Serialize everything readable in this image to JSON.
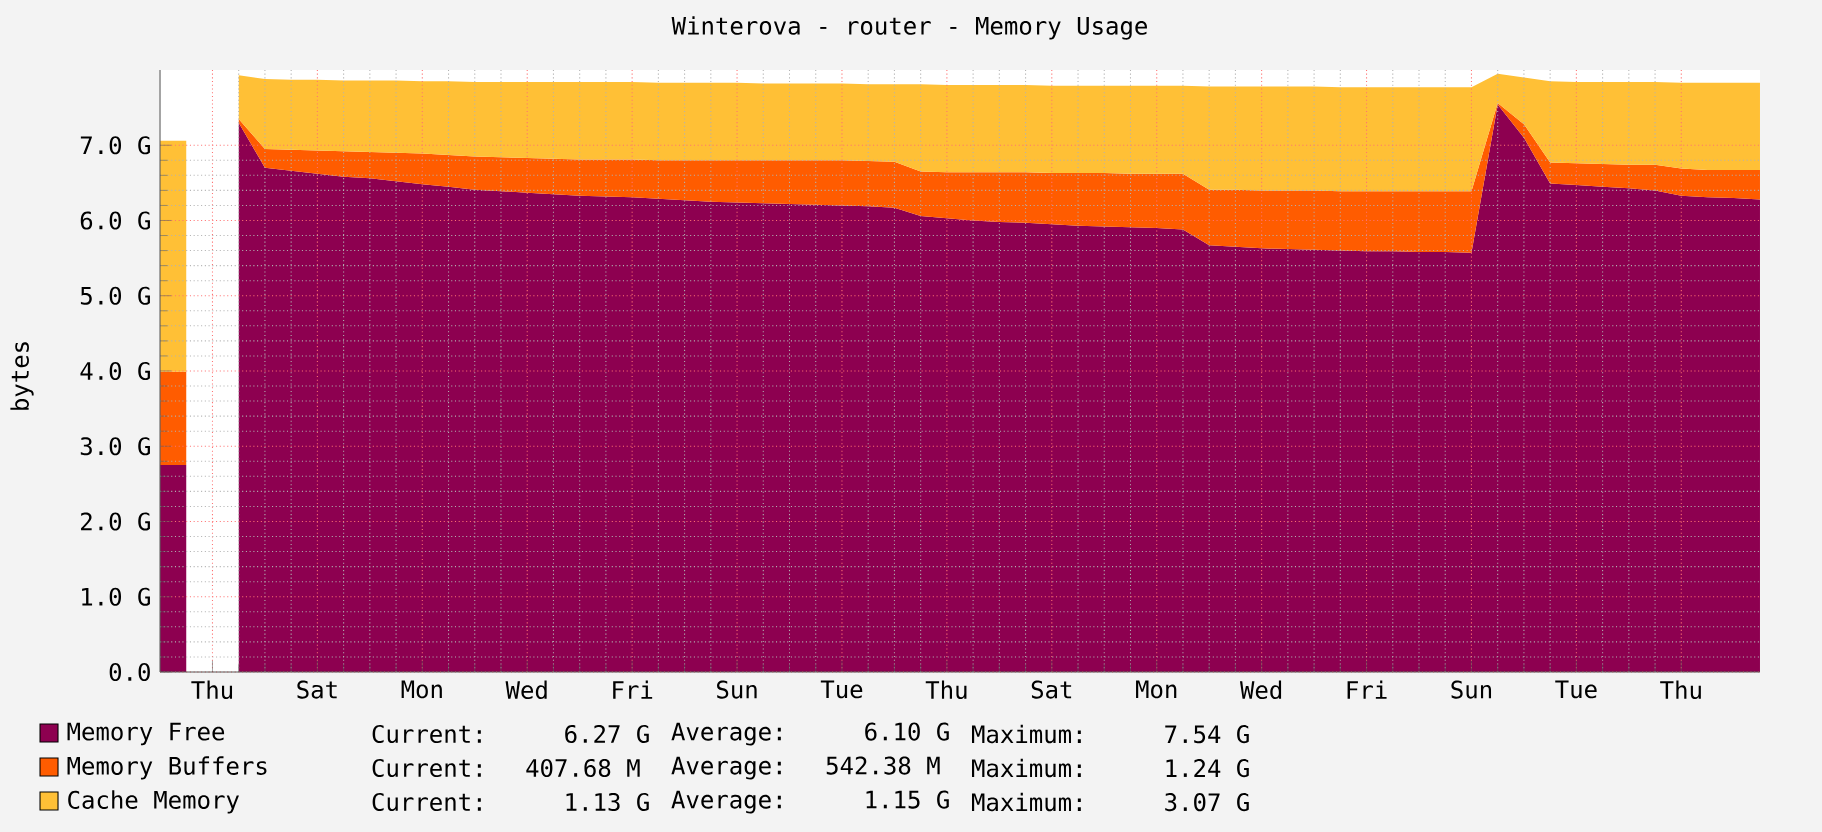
{
  "chart_data": {
    "type": "area",
    "stacked": true,
    "title": "Winterova - router - Memory Usage",
    "ylabel": "bytes",
    "categories": [
      null,
      null,
      "Thu",
      null,
      null,
      null,
      "Sat",
      null,
      null,
      null,
      "Mon",
      null,
      null,
      null,
      "Wed",
      null,
      null,
      null,
      "Fri",
      null,
      null,
      null,
      "Sun",
      null,
      null,
      null,
      "Tue",
      null,
      null,
      null,
      "Thu",
      null,
      null,
      null,
      "Sat",
      null,
      null,
      null,
      "Mon",
      null,
      null,
      null,
      "Wed",
      null,
      null,
      null,
      "Fri",
      null,
      null,
      null,
      "Sun",
      null,
      null,
      null,
      "Tue",
      null,
      null,
      null,
      "Thu",
      null,
      null,
      null
    ],
    "series": [
      {
        "name": "Memory Free",
        "color": "#8d0050",
        "values": [
          2.75,
          2.75,
          null,
          7.3,
          6.7,
          6.66,
          6.62,
          6.58,
          6.56,
          6.52,
          6.48,
          6.45,
          6.41,
          6.39,
          6.37,
          6.35,
          6.33,
          6.32,
          6.31,
          6.29,
          6.27,
          6.25,
          6.24,
          6.23,
          6.22,
          6.21,
          6.2,
          6.19,
          6.17,
          6.06,
          6.03,
          6.0,
          5.98,
          5.97,
          5.95,
          5.93,
          5.92,
          5.91,
          5.9,
          5.88,
          5.67,
          5.65,
          5.63,
          5.62,
          5.61,
          5.6,
          5.59,
          5.59,
          5.58,
          5.58,
          5.57,
          7.54,
          7.1,
          6.49,
          6.47,
          6.45,
          6.43,
          6.4,
          6.33,
          6.31,
          6.3,
          6.28
        ]
      },
      {
        "name": "Memory Buffers",
        "color": "#ff5c00",
        "values": [
          1.24,
          1.24,
          null,
          0.05,
          0.25,
          0.28,
          0.31,
          0.34,
          0.35,
          0.38,
          0.41,
          0.42,
          0.44,
          0.45,
          0.46,
          0.47,
          0.48,
          0.49,
          0.5,
          0.51,
          0.53,
          0.55,
          0.56,
          0.57,
          0.58,
          0.59,
          0.6,
          0.6,
          0.61,
          0.59,
          0.61,
          0.64,
          0.66,
          0.67,
          0.68,
          0.7,
          0.71,
          0.71,
          0.72,
          0.74,
          0.74,
          0.76,
          0.77,
          0.78,
          0.79,
          0.79,
          0.8,
          0.8,
          0.81,
          0.81,
          0.82,
          0.02,
          0.18,
          0.28,
          0.29,
          0.3,
          0.31,
          0.34,
          0.36,
          0.36,
          0.37,
          0.39
        ]
      },
      {
        "name": "Cache Memory",
        "color": "#ffc036",
        "values": [
          3.07,
          3.07,
          null,
          0.58,
          0.93,
          0.93,
          0.94,
          0.94,
          0.95,
          0.96,
          0.96,
          0.98,
          0.99,
          1.0,
          1.01,
          1.02,
          1.03,
          1.03,
          1.03,
          1.03,
          1.03,
          1.03,
          1.03,
          1.02,
          1.02,
          1.02,
          1.02,
          1.02,
          1.03,
          1.16,
          1.16,
          1.16,
          1.16,
          1.16,
          1.16,
          1.16,
          1.16,
          1.17,
          1.17,
          1.17,
          1.37,
          1.37,
          1.38,
          1.38,
          1.38,
          1.38,
          1.38,
          1.38,
          1.38,
          1.38,
          1.38,
          0.39,
          0.62,
          1.08,
          1.08,
          1.09,
          1.1,
          1.1,
          1.14,
          1.16,
          1.16,
          1.16
        ]
      }
    ],
    "ylim": [
      0,
      8
    ],
    "yticks": [
      {
        "value": 0,
        "label": "0.0"
      },
      {
        "value": 1,
        "label": "1.0 G"
      },
      {
        "value": 2,
        "label": "2.0 G"
      },
      {
        "value": 3,
        "label": "3.0 G"
      },
      {
        "value": 4,
        "label": "4.0 G"
      },
      {
        "value": 5,
        "label": "5.0 G"
      },
      {
        "value": 6,
        "label": "6.0 G"
      },
      {
        "value": 7,
        "label": "7.0 G"
      }
    ],
    "grid": true,
    "legend": "bottom left",
    "annotations": [
      "Current:    6.27 G",
      "Average:    6.10 G",
      "Maximum:    7.54 G",
      "Current:  407.68 M",
      "Average:  542.38 M",
      "Maximum:    1.24 G",
      "Current:    1.13 G",
      "Average:    1.15 G",
      "Maximum:    3.07 G"
    ]
  }
}
